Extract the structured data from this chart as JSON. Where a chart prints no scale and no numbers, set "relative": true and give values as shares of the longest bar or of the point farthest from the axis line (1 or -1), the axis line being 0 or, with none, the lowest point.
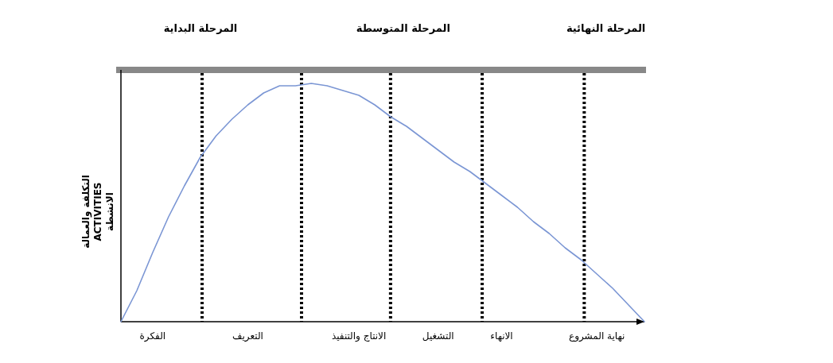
{
  "chart_data": {
    "type": "line",
    "relative": true,
    "ylabel": "التكلفة والعمالة\nACTIVITIES\nالانشطة",
    "categories": [
      null,
      null,
      "الفكرة",
      null,
      null,
      null,
      null,
      null,
      "التعريف",
      null,
      null,
      null,
      null,
      null,
      null,
      "الانتاج والتنفيذ",
      null,
      null,
      null,
      null,
      "التشغيل",
      null,
      null,
      null,
      "الانهاء",
      null,
      null,
      null,
      null,
      null,
      "نهاية المشروع",
      null,
      null,
      null
    ],
    "series": [
      {
        "color": "#7b96d4",
        "values": [
          0,
          0.13,
          0.29,
          0.44,
          0.57,
          0.69,
          0.78,
          0.85,
          0.91,
          0.96,
          0.99,
          0.99,
          1,
          0.99,
          0.97,
          0.95,
          0.91,
          0.86,
          0.82,
          0.77,
          0.72,
          0.67,
          0.63,
          0.58,
          0.53,
          0.48,
          0.42,
          0.37,
          0.31,
          0.26,
          0.2,
          0.14,
          0.07,
          0
        ]
      }
    ],
    "grid": "x",
    "annotations": [
      "المرحلة البداية",
      "المرحلة المتوسطة",
      "المرحلة النهائية"
    ],
    "marker": "none",
    "line_style": "solid"
  }
}
